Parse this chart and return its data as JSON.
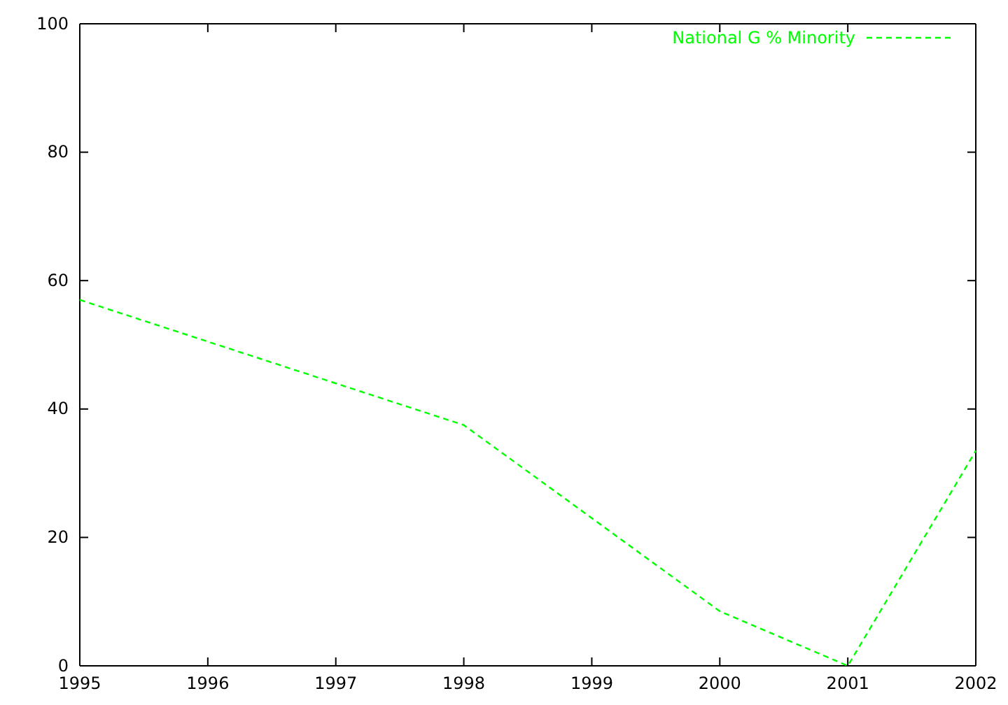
{
  "chart_data": {
    "type": "line",
    "x": [
      1995,
      1998,
      2000,
      2001,
      2002
    ],
    "series": [
      {
        "name": "National G % Minority",
        "color": "#00ff00",
        "values": [
          57,
          37.5,
          8.5,
          0,
          33.5
        ]
      }
    ],
    "xlim": [
      1995,
      2002
    ],
    "xticks": [
      1995,
      1996,
      1997,
      1998,
      1999,
      2000,
      2001,
      2002
    ],
    "ylim": [
      0,
      100
    ],
    "yticks": [
      0,
      20,
      40,
      60,
      80,
      100
    ],
    "grid": false,
    "legend": "top right",
    "line_style": "dashed",
    "marker": "none"
  }
}
